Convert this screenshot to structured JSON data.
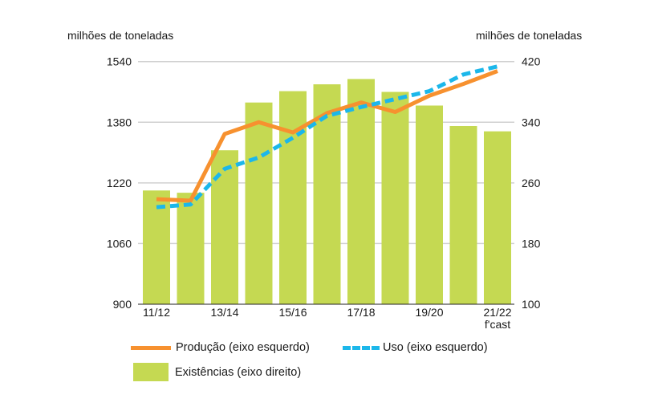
{
  "chart_data": {
    "type": "bar+line",
    "categories": [
      "11/12",
      "",
      "13/14",
      "",
      "15/16",
      "",
      "17/18",
      "",
      "19/20",
      "",
      "21/22 f'cast"
    ],
    "left_axis": {
      "label": "milhões de toneladas",
      "ylim": [
        900,
        1540
      ],
      "ticks": [
        900,
        1060,
        1220,
        1380,
        1540
      ]
    },
    "right_axis": {
      "label": "milhões de toneladas",
      "ylim": [
        100,
        420
      ],
      "ticks": [
        100,
        180,
        260,
        340,
        420
      ]
    },
    "grid": true,
    "legend_position": "bottom",
    "series": [
      {
        "name": "Existências (eixo direito)",
        "type": "bar",
        "axis": "right",
        "color": "#c5d952",
        "values": [
          250,
          247,
          303,
          366,
          381,
          390,
          397,
          380,
          362,
          335,
          328
        ]
      },
      {
        "name": "Produção (eixo esquerdo)",
        "type": "line",
        "axis": "left",
        "color": "#f7912f",
        "style": "solid",
        "values": [
          1177,
          1173,
          1349,
          1380,
          1353,
          1404,
          1432,
          1407,
          1450,
          1481,
          1515
        ]
      },
      {
        "name": "Uso (eixo esquerdo)",
        "type": "line",
        "axis": "left",
        "color": "#1cb7ea",
        "style": "dashed",
        "values": [
          1156,
          1163,
          1257,
          1287,
          1339,
          1397,
          1420,
          1441,
          1462,
          1506,
          1527
        ]
      }
    ]
  }
}
